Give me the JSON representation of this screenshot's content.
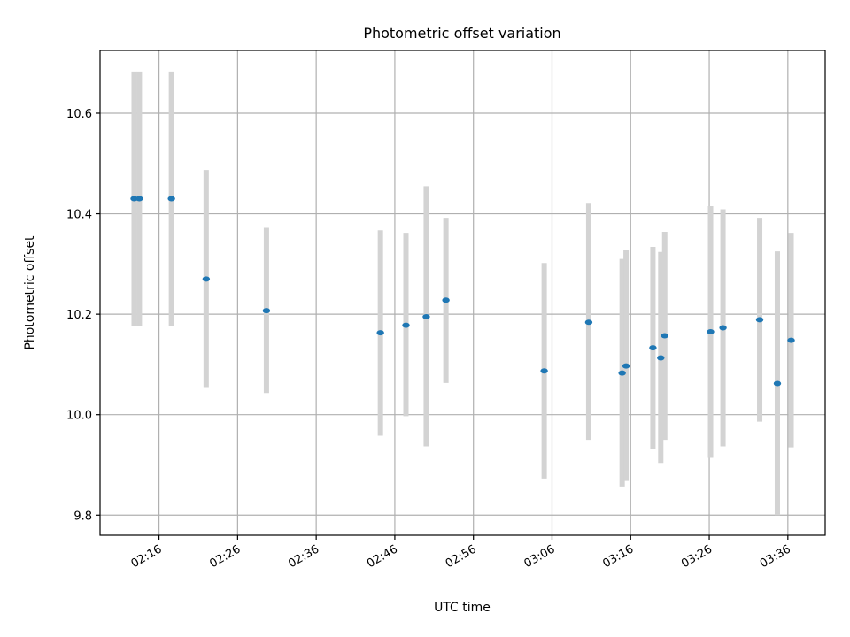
{
  "chart_data": {
    "type": "scatter",
    "title": "Photometric offset variation",
    "xlabel": "UTC time",
    "ylabel": "Photometric offset",
    "xlim": [
      "02:08:30",
      "03:40:45"
    ],
    "ylim": [
      9.76,
      10.725
    ],
    "grid": true,
    "x_ticks": [
      "02:16",
      "02:26",
      "02:36",
      "02:46",
      "02:56",
      "03:06",
      "03:16",
      "03:26",
      "03:36"
    ],
    "y_ticks": [
      "9.8",
      "10.0",
      "10.2",
      "10.4",
      "10.6"
    ],
    "colors": {
      "point": "#1f77b4",
      "errorbar": "#d3d3d3",
      "grid": "#b0b0b0"
    },
    "points": [
      {
        "t": "02:12:50",
        "y": 10.43,
        "lo": 10.177,
        "hi": 10.683
      },
      {
        "t": "02:13:30",
        "y": 10.43,
        "lo": 10.177,
        "hi": 10.683
      },
      {
        "t": "02:17:35",
        "y": 10.43,
        "lo": 10.177,
        "hi": 10.683
      },
      {
        "t": "02:22:00",
        "y": 10.27,
        "lo": 10.055,
        "hi": 10.487
      },
      {
        "t": "02:29:40",
        "y": 10.207,
        "lo": 10.043,
        "hi": 10.372
      },
      {
        "t": "02:44:10",
        "y": 10.163,
        "lo": 9.958,
        "hi": 10.367
      },
      {
        "t": "02:47:25",
        "y": 10.178,
        "lo": 9.997,
        "hi": 10.362
      },
      {
        "t": "02:50:00",
        "y": 10.195,
        "lo": 9.937,
        "hi": 10.455
      },
      {
        "t": "02:52:30",
        "y": 10.228,
        "lo": 10.063,
        "hi": 10.392
      },
      {
        "t": "03:05:00",
        "y": 10.087,
        "lo": 9.873,
        "hi": 10.302
      },
      {
        "t": "03:10:40",
        "y": 10.184,
        "lo": 9.95,
        "hi": 10.42
      },
      {
        "t": "03:14:55",
        "y": 10.083,
        "lo": 9.857,
        "hi": 10.31
      },
      {
        "t": "03:15:25",
        "y": 10.097,
        "lo": 9.868,
        "hi": 10.327
      },
      {
        "t": "03:18:50",
        "y": 10.133,
        "lo": 9.932,
        "hi": 10.334
      },
      {
        "t": "03:19:50",
        "y": 10.113,
        "lo": 9.904,
        "hi": 10.324
      },
      {
        "t": "03:20:20",
        "y": 10.157,
        "lo": 9.95,
        "hi": 10.364
      },
      {
        "t": "03:26:10",
        "y": 10.165,
        "lo": 9.914,
        "hi": 10.415
      },
      {
        "t": "03:27:45",
        "y": 10.173,
        "lo": 9.937,
        "hi": 10.409
      },
      {
        "t": "03:32:25",
        "y": 10.189,
        "lo": 9.986,
        "hi": 10.392
      },
      {
        "t": "03:34:40",
        "y": 10.062,
        "lo": 9.8,
        "hi": 10.325
      },
      {
        "t": "03:36:25",
        "y": 10.148,
        "lo": 9.935,
        "hi": 10.362
      }
    ]
  }
}
